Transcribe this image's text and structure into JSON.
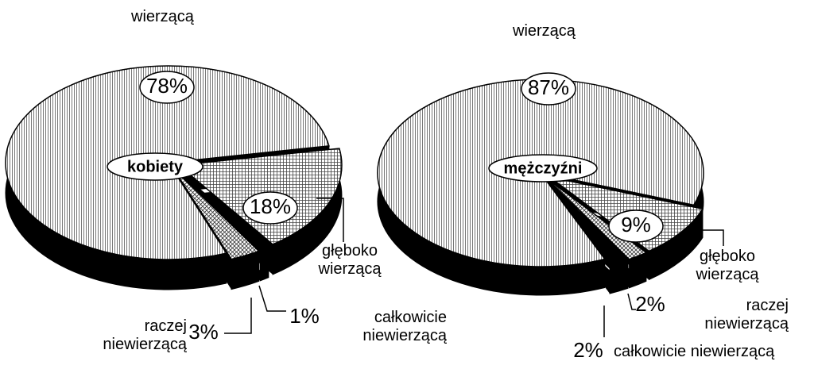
{
  "chart_data": [
    {
      "type": "pie",
      "title": "kobiety",
      "categories": [
        "wierzącą",
        "głęboko wierzącą",
        "całkowicie niewierzącą",
        "raczej niewierzącą"
      ],
      "values": [
        78,
        18,
        1,
        3
      ],
      "value_labels": [
        "78%",
        "18%",
        "1%",
        "3%"
      ]
    },
    {
      "type": "pie",
      "title": "mężczyźni",
      "categories": [
        "wierzącą",
        "głęboko wierzącą",
        "raczej niewierzącą",
        "całkowicie niewierzącą"
      ],
      "values": [
        87,
        9,
        2,
        2
      ],
      "value_labels": [
        "87%",
        "9%",
        "2%",
        "2%"
      ]
    }
  ]
}
